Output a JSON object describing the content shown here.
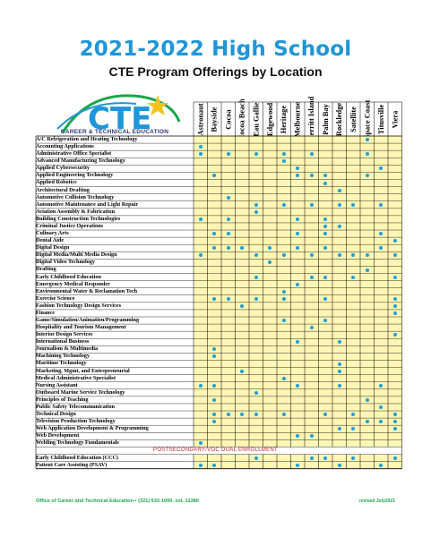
{
  "header": {
    "title": "2021-2022 High School",
    "subtitle": "CTE Program Offerings by Location",
    "logo_text": "CTE",
    "logo_caption": "CAREER & TECHNICAL EDUCATION"
  },
  "colors": {
    "title": "#1f96d8",
    "dot": "#1e9fd8",
    "cell": "#fdf6b4",
    "section": "#c1272d",
    "footer": "#1aa64a"
  },
  "locations": [
    "Astronaut",
    "Bayside",
    "Cocoa",
    "Cocoa Beach",
    "Eau Gallie",
    "Edgewood",
    "Heritage",
    "Melbourne",
    "Merritt Island",
    "Palm Bay",
    "Rockledge",
    "Satellite",
    "Space Coast",
    "Titusville",
    "Viera"
  ],
  "programs": [
    {
      "name": "A/C Refrigeration and Heating Technology",
      "offered": [
        0,
        0,
        0,
        0,
        0,
        0,
        0,
        0,
        0,
        0,
        0,
        0,
        1,
        0,
        0
      ]
    },
    {
      "name": "Accounting Applications",
      "offered": [
        1,
        0,
        0,
        0,
        0,
        0,
        0,
        0,
        0,
        0,
        0,
        0,
        0,
        0,
        0
      ]
    },
    {
      "name": "Administrative Office Specialist",
      "offered": [
        1,
        0,
        1,
        0,
        1,
        0,
        1,
        0,
        1,
        0,
        0,
        0,
        1,
        0,
        0
      ]
    },
    {
      "name": "Advanced Manufacturing Technology",
      "offered": [
        0,
        0,
        0,
        0,
        0,
        0,
        1,
        0,
        0,
        0,
        0,
        0,
        0,
        0,
        0
      ]
    },
    {
      "name": "Applied Cybersecurity",
      "offered": [
        0,
        0,
        0,
        0,
        0,
        0,
        0,
        1,
        0,
        0,
        0,
        0,
        0,
        1,
        0
      ]
    },
    {
      "name": "Applied Engineering Technology",
      "offered": [
        0,
        1,
        0,
        0,
        0,
        0,
        0,
        1,
        1,
        1,
        0,
        0,
        1,
        0,
        0
      ]
    },
    {
      "name": "Applied Robotics",
      "offered": [
        0,
        0,
        0,
        0,
        0,
        0,
        0,
        0,
        0,
        1,
        0,
        0,
        0,
        0,
        0
      ]
    },
    {
      "name": "Architectural Drafting",
      "offered": [
        0,
        0,
        0,
        0,
        0,
        0,
        0,
        0,
        0,
        0,
        1,
        0,
        0,
        0,
        0
      ]
    },
    {
      "name": "Automotive Collision Technology",
      "offered": [
        0,
        0,
        1,
        0,
        0,
        0,
        0,
        0,
        0,
        0,
        0,
        0,
        0,
        0,
        0
      ]
    },
    {
      "name": "Automotive Maintenance and Light Repair",
      "offered": [
        0,
        0,
        0,
        0,
        1,
        0,
        1,
        0,
        1,
        0,
        1,
        1,
        0,
        1,
        0
      ]
    },
    {
      "name": "Aviation Assembly & Fabrication",
      "offered": [
        0,
        0,
        0,
        0,
        1,
        0,
        0,
        0,
        0,
        0,
        0,
        0,
        0,
        0,
        0
      ]
    },
    {
      "name": "Building Construction Technologies",
      "offered": [
        1,
        0,
        1,
        0,
        0,
        0,
        0,
        1,
        0,
        1,
        0,
        0,
        0,
        0,
        0
      ]
    },
    {
      "name": "Criminal Justice Operations",
      "offered": [
        0,
        0,
        0,
        0,
        0,
        0,
        0,
        0,
        0,
        1,
        1,
        0,
        0,
        0,
        0
      ]
    },
    {
      "name": "Culinary Arts",
      "offered": [
        0,
        1,
        1,
        0,
        0,
        0,
        0,
        1,
        0,
        1,
        0,
        0,
        0,
        1,
        0
      ]
    },
    {
      "name": "Dental Aide",
      "offered": [
        0,
        0,
        0,
        0,
        0,
        0,
        0,
        0,
        0,
        0,
        0,
        0,
        0,
        0,
        1
      ]
    },
    {
      "name": "Digital Design",
      "offered": [
        0,
        1,
        1,
        1,
        0,
        1,
        0,
        1,
        0,
        1,
        0,
        0,
        0,
        1,
        0
      ]
    },
    {
      "name": "Digital Media/Multi Media Design",
      "offered": [
        1,
        0,
        0,
        0,
        1,
        0,
        1,
        0,
        1,
        0,
        1,
        1,
        1,
        0,
        1
      ]
    },
    {
      "name": "Digital Video Technology",
      "offered": [
        0,
        0,
        0,
        0,
        0,
        1,
        0,
        0,
        0,
        0,
        0,
        0,
        0,
        0,
        0
      ]
    },
    {
      "name": "Drafting",
      "offered": [
        0,
        0,
        0,
        0,
        0,
        0,
        0,
        0,
        0,
        0,
        0,
        0,
        1,
        0,
        0
      ]
    },
    {
      "name": "Early Childhood Education",
      "offered": [
        0,
        0,
        0,
        0,
        1,
        0,
        0,
        0,
        1,
        1,
        0,
        1,
        0,
        0,
        1
      ]
    },
    {
      "name": "Emergency Medical Responder",
      "offered": [
        0,
        0,
        0,
        0,
        0,
        0,
        0,
        1,
        0,
        0,
        0,
        0,
        0,
        0,
        0
      ]
    },
    {
      "name": "Environmental Water & Reclamation Tech",
      "offered": [
        0,
        0,
        0,
        0,
        0,
        0,
        1,
        0,
        0,
        0,
        0,
        0,
        0,
        0,
        0
      ]
    },
    {
      "name": "Exercise Science",
      "offered": [
        0,
        1,
        1,
        0,
        1,
        0,
        1,
        0,
        0,
        1,
        0,
        0,
        0,
        0,
        1
      ]
    },
    {
      "name": "Fashion Technology Design Services",
      "offered": [
        0,
        0,
        0,
        1,
        0,
        0,
        0,
        0,
        0,
        0,
        0,
        0,
        0,
        0,
        1
      ]
    },
    {
      "name": "Finance",
      "offered": [
        0,
        0,
        0,
        0,
        0,
        0,
        0,
        0,
        0,
        0,
        0,
        0,
        0,
        0,
        1
      ]
    },
    {
      "name": "Game/Simulation/Animation/Programming",
      "offered": [
        0,
        0,
        0,
        0,
        0,
        0,
        1,
        0,
        0,
        1,
        0,
        0,
        0,
        0,
        0
      ]
    },
    {
      "name": "Hospitality and Tourism Management",
      "offered": [
        0,
        0,
        0,
        0,
        0,
        0,
        0,
        0,
        1,
        0,
        0,
        0,
        0,
        0,
        0
      ]
    },
    {
      "name": "Interior Design Services",
      "offered": [
        0,
        0,
        0,
        0,
        0,
        0,
        0,
        0,
        0,
        0,
        0,
        0,
        0,
        0,
        1
      ]
    },
    {
      "name": "International Business",
      "offered": [
        0,
        0,
        0,
        0,
        0,
        0,
        0,
        1,
        0,
        0,
        1,
        0,
        0,
        0,
        0
      ]
    },
    {
      "name": "Journalism & Multimedia",
      "offered": [
        0,
        1,
        0,
        0,
        0,
        0,
        0,
        0,
        0,
        0,
        0,
        0,
        0,
        0,
        0
      ]
    },
    {
      "name": "Machining Technology",
      "offered": [
        0,
        1,
        0,
        0,
        0,
        0,
        0,
        0,
        0,
        0,
        0,
        0,
        0,
        0,
        0
      ]
    },
    {
      "name": "Maritime Technology",
      "offered": [
        0,
        0,
        0,
        0,
        0,
        0,
        0,
        0,
        0,
        0,
        1,
        0,
        0,
        0,
        0
      ]
    },
    {
      "name": "Marketing, Mgmt, and Entrepreneurial",
      "offered": [
        0,
        0,
        0,
        1,
        0,
        0,
        0,
        0,
        0,
        0,
        1,
        0,
        0,
        0,
        0
      ]
    },
    {
      "name": "Medical Administrative Specialist",
      "offered": [
        0,
        0,
        0,
        0,
        0,
        0,
        1,
        0,
        0,
        0,
        0,
        0,
        0,
        0,
        0
      ]
    },
    {
      "name": "Nursing Assistant",
      "offered": [
        1,
        1,
        0,
        0,
        0,
        0,
        0,
        1,
        0,
        0,
        1,
        0,
        0,
        1,
        0
      ]
    },
    {
      "name": "Outboard Marine Service Technology",
      "offered": [
        0,
        0,
        0,
        0,
        1,
        0,
        0,
        0,
        0,
        0,
        0,
        0,
        0,
        0,
        0
      ]
    },
    {
      "name": "Principles of Teaching",
      "offered": [
        0,
        1,
        0,
        0,
        0,
        0,
        0,
        0,
        0,
        0,
        0,
        0,
        1,
        0,
        0
      ]
    },
    {
      "name": "Public Safety Telecommunication",
      "offered": [
        0,
        0,
        0,
        0,
        0,
        0,
        0,
        0,
        0,
        0,
        0,
        0,
        0,
        1,
        0
      ]
    },
    {
      "name": "Technical Design",
      "offered": [
        0,
        1,
        1,
        1,
        1,
        0,
        1,
        0,
        0,
        1,
        0,
        1,
        0,
        0,
        1
      ]
    },
    {
      "name": "Television Production Technology",
      "offered": [
        0,
        1,
        0,
        0,
        0,
        0,
        0,
        0,
        0,
        0,
        0,
        0,
        1,
        1,
        1
      ]
    },
    {
      "name": "Web Application Development & Programming",
      "offered": [
        0,
        0,
        0,
        0,
        0,
        0,
        0,
        0,
        0,
        0,
        1,
        1,
        0,
        0,
        1
      ]
    },
    {
      "name": "Web Development",
      "offered": [
        0,
        0,
        0,
        0,
        0,
        0,
        0,
        1,
        1,
        0,
        0,
        0,
        0,
        0,
        0
      ]
    },
    {
      "name": "Welding Technology Fundamentals",
      "offered": [
        1,
        0,
        0,
        0,
        0,
        0,
        0,
        0,
        0,
        0,
        0,
        0,
        0,
        0,
        0
      ]
    }
  ],
  "postsecondary_heading": "POSTSECONDARY/VOC DUAL ENROLLMENT",
  "postsecondary": [
    {
      "name": "Early Childhood Education (CCC)",
      "offered": [
        0,
        0,
        0,
        0,
        1,
        0,
        0,
        0,
        1,
        1,
        0,
        1,
        0,
        0,
        1
      ]
    },
    {
      "name": "Patient Care Assisting (PSAV)",
      "offered": [
        1,
        1,
        0,
        0,
        0,
        0,
        0,
        1,
        0,
        0,
        1,
        0,
        0,
        1,
        0
      ]
    }
  ],
  "footer": {
    "contact": "Office of Career and Technical Education  ▪  (321) 633-1000, ext. 11380",
    "revised": "revised July2021"
  }
}
